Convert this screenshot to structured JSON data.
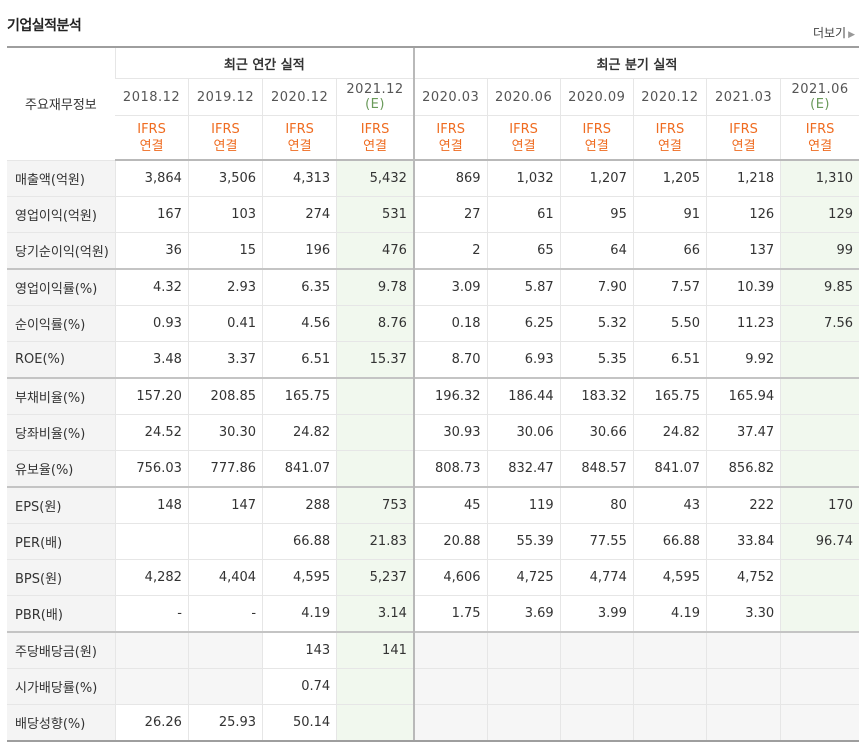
{
  "section_title": "기업실적분석",
  "more_label": "더보기",
  "header": {
    "corner_label": "주요재무정보",
    "annual_group": "최근 연간 실적",
    "quarter_group": "최근 분기 실적",
    "annual_periods": [
      "2018.12",
      "2019.12",
      "2020.12",
      "2021.12"
    ],
    "annual_est_mark": "(E)",
    "quarter_periods": [
      "2020.03",
      "2020.06",
      "2020.09",
      "2020.12",
      "2021.03",
      "2021.06"
    ],
    "quarter_est_mark": "(E)",
    "ifrs_line1": "IFRS",
    "ifrs_line2": "연결"
  },
  "rows": [
    {
      "label": "매출액(억원)",
      "annual": [
        "3,864",
        "3,506",
        "4,313",
        "5,432"
      ],
      "quarter": [
        "869",
        "1,032",
        "1,207",
        "1,205",
        "1,218",
        "1,310"
      ]
    },
    {
      "label": "영업이익(억원)",
      "annual": [
        "167",
        "103",
        "274",
        "531"
      ],
      "quarter": [
        "27",
        "61",
        "95",
        "91",
        "126",
        "129"
      ]
    },
    {
      "label": "당기순이익(억원)",
      "annual": [
        "36",
        "15",
        "196",
        "476"
      ],
      "quarter": [
        "2",
        "65",
        "64",
        "66",
        "137",
        "99"
      ]
    },
    {
      "label": "영업이익률(%)",
      "annual": [
        "4.32",
        "2.93",
        "6.35",
        "9.78"
      ],
      "quarter": [
        "3.09",
        "5.87",
        "7.90",
        "7.57",
        "10.39",
        "9.85"
      ]
    },
    {
      "label": "순이익률(%)",
      "annual": [
        "0.93",
        "0.41",
        "4.56",
        "8.76"
      ],
      "quarter": [
        "0.18",
        "6.25",
        "5.32",
        "5.50",
        "11.23",
        "7.56"
      ]
    },
    {
      "label": "ROE(%)",
      "annual": [
        "3.48",
        "3.37",
        "6.51",
        "15.37"
      ],
      "quarter": [
        "8.70",
        "6.93",
        "5.35",
        "6.51",
        "9.92",
        ""
      ]
    },
    {
      "label": "부채비율(%)",
      "annual": [
        "157.20",
        "208.85",
        "165.75",
        ""
      ],
      "quarter": [
        "196.32",
        "186.44",
        "183.32",
        "165.75",
        "165.94",
        ""
      ]
    },
    {
      "label": "당좌비율(%)",
      "annual": [
        "24.52",
        "30.30",
        "24.82",
        ""
      ],
      "quarter": [
        "30.93",
        "30.06",
        "30.66",
        "24.82",
        "37.47",
        ""
      ]
    },
    {
      "label": "유보율(%)",
      "annual": [
        "756.03",
        "777.86",
        "841.07",
        ""
      ],
      "quarter": [
        "808.73",
        "832.47",
        "848.57",
        "841.07",
        "856.82",
        ""
      ]
    },
    {
      "label": "EPS(원)",
      "annual": [
        "148",
        "147",
        "288",
        "753"
      ],
      "quarter": [
        "45",
        "119",
        "80",
        "43",
        "222",
        "170"
      ]
    },
    {
      "label": "PER(배)",
      "annual": [
        "",
        "",
        "66.88",
        "21.83"
      ],
      "quarter": [
        "20.88",
        "55.39",
        "77.55",
        "66.88",
        "33.84",
        "96.74"
      ]
    },
    {
      "label": "BPS(원)",
      "annual": [
        "4,282",
        "4,404",
        "4,595",
        "5,237"
      ],
      "quarter": [
        "4,606",
        "4,725",
        "4,774",
        "4,595",
        "4,752",
        ""
      ]
    },
    {
      "label": "PBR(배)",
      "annual": [
        "-",
        "-",
        "4.19",
        "3.14"
      ],
      "quarter": [
        "1.75",
        "3.69",
        "3.99",
        "4.19",
        "3.30",
        ""
      ]
    },
    {
      "label": "주당배당금(원)",
      "annual": [
        "",
        "",
        "143",
        "141"
      ],
      "quarter": [
        "",
        "",
        "",
        "",
        "",
        ""
      ]
    },
    {
      "label": "시가배당률(%)",
      "annual": [
        "",
        "",
        "0.74",
        ""
      ],
      "quarter": [
        "",
        "",
        "",
        "",
        "",
        ""
      ]
    },
    {
      "label": "배당성향(%)",
      "annual": [
        "26.26",
        "25.93",
        "50.14",
        ""
      ],
      "quarter": [
        "",
        "",
        "",
        "",
        "",
        ""
      ]
    }
  ],
  "group_breaks": [
    3,
    6,
    9,
    13
  ],
  "grey_cells": {
    "13": {
      "annual": [
        0,
        1
      ],
      "quarter": [
        0,
        1,
        2,
        3,
        4,
        5
      ]
    },
    "14": {
      "annual": [
        0,
        1
      ],
      "quarter": [
        0,
        1,
        2,
        3,
        4,
        5
      ]
    },
    "15": {
      "annual": [],
      "quarter": [
        0,
        1,
        2,
        3,
        4,
        5
      ]
    }
  },
  "colors": {
    "ifrs_orange": "#ef6c21",
    "estimate_bg": "#f1f8ee",
    "label_bg": "#f4f4f4"
  }
}
